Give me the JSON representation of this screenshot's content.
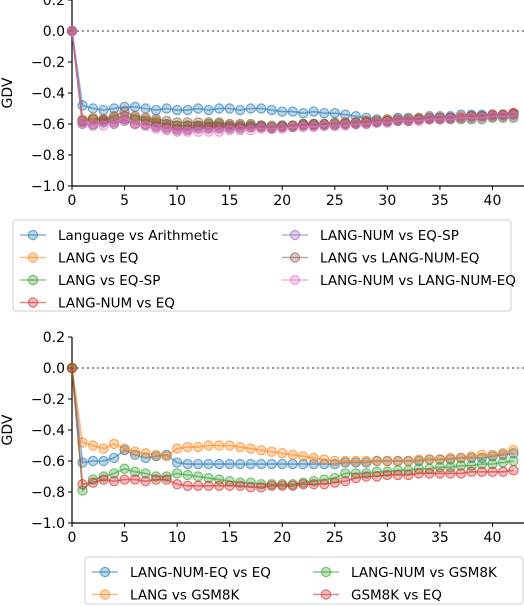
{
  "chart_data": [
    {
      "type": "line",
      "ylabel": "GDV",
      "xlabel": "",
      "xlim": [
        0,
        43
      ],
      "ylim": [
        -1.0,
        0.2
      ],
      "xticks": [
        0,
        5,
        10,
        15,
        20,
        25,
        30,
        35,
        40
      ],
      "yticks": [
        0.2,
        0.0,
        -0.2,
        -0.4,
        -0.6,
        -0.8,
        -1.0
      ],
      "xtick_labels": [
        "0",
        "5",
        "10",
        "15",
        "20",
        "25",
        "30",
        "35",
        "40"
      ],
      "ytick_labels": [
        "0.2",
        "0.0",
        "−0.2",
        "−0.4",
        "−0.6",
        "−0.8",
        "−1.0"
      ],
      "reference_line": 0.0,
      "legend_position": "below",
      "series": [
        {
          "name": "Language vs Arithmetic",
          "color": "#1f77b4",
          "y": [
            0.0,
            -0.48,
            -0.5,
            -0.51,
            -0.5,
            -0.49,
            -0.49,
            -0.5,
            -0.51,
            -0.5,
            -0.51,
            -0.51,
            -0.5,
            -0.51,
            -0.5,
            -0.5,
            -0.51,
            -0.5,
            -0.5,
            -0.51,
            -0.52,
            -0.52,
            -0.53,
            -0.52,
            -0.53,
            -0.53,
            -0.54,
            -0.55,
            -0.56,
            -0.57,
            -0.57,
            -0.56,
            -0.56,
            -0.56,
            -0.55,
            -0.55,
            -0.55,
            -0.54,
            -0.54,
            -0.54,
            -0.54,
            -0.54,
            -0.53
          ]
        },
        {
          "name": "LANG vs EQ",
          "color": "#ff7f0e",
          "y": [
            0.0,
            -0.57,
            -0.56,
            -0.57,
            -0.56,
            -0.55,
            -0.56,
            -0.57,
            -0.58,
            -0.6,
            -0.61,
            -0.61,
            -0.61,
            -0.61,
            -0.61,
            -0.61,
            -0.61,
            -0.61,
            -0.61,
            -0.62,
            -0.61,
            -0.61,
            -0.6,
            -0.6,
            -0.6,
            -0.6,
            -0.59,
            -0.59,
            -0.58,
            -0.58,
            -0.57,
            -0.57,
            -0.57,
            -0.56,
            -0.56,
            -0.56,
            -0.56,
            -0.55,
            -0.55,
            -0.55,
            -0.55,
            -0.54,
            -0.53
          ]
        },
        {
          "name": "LANG vs EQ-SP",
          "color": "#2ca02c",
          "y": [
            0.0,
            -0.58,
            -0.57,
            -0.58,
            -0.57,
            -0.56,
            -0.57,
            -0.58,
            -0.59,
            -0.6,
            -0.61,
            -0.61,
            -0.61,
            -0.6,
            -0.6,
            -0.61,
            -0.61,
            -0.61,
            -0.61,
            -0.62,
            -0.61,
            -0.61,
            -0.6,
            -0.6,
            -0.6,
            -0.6,
            -0.6,
            -0.59,
            -0.59,
            -0.59,
            -0.58,
            -0.58,
            -0.58,
            -0.57,
            -0.57,
            -0.57,
            -0.57,
            -0.57,
            -0.57,
            -0.57,
            -0.56,
            -0.56,
            -0.56
          ]
        },
        {
          "name": "LANG-NUM vs EQ",
          "color": "#d62728",
          "y": [
            0.0,
            -0.59,
            -0.6,
            -0.58,
            -0.59,
            -0.57,
            -0.6,
            -0.6,
            -0.61,
            -0.62,
            -0.63,
            -0.63,
            -0.62,
            -0.62,
            -0.62,
            -0.62,
            -0.62,
            -0.62,
            -0.62,
            -0.63,
            -0.62,
            -0.62,
            -0.61,
            -0.61,
            -0.61,
            -0.61,
            -0.6,
            -0.6,
            -0.59,
            -0.59,
            -0.58,
            -0.58,
            -0.58,
            -0.57,
            -0.57,
            -0.57,
            -0.56,
            -0.56,
            -0.55,
            -0.55,
            -0.54,
            -0.54,
            -0.53
          ]
        },
        {
          "name": "LANG-NUM vs EQ-SP",
          "color": "#9467bd",
          "y": [
            0.0,
            -0.6,
            -0.61,
            -0.59,
            -0.6,
            -0.58,
            -0.6,
            -0.61,
            -0.62,
            -0.63,
            -0.64,
            -0.64,
            -0.63,
            -0.63,
            -0.63,
            -0.63,
            -0.63,
            -0.62,
            -0.62,
            -0.63,
            -0.62,
            -0.62,
            -0.61,
            -0.61,
            -0.61,
            -0.61,
            -0.6,
            -0.6,
            -0.6,
            -0.59,
            -0.59,
            -0.58,
            -0.58,
            -0.57,
            -0.57,
            -0.57,
            -0.56,
            -0.56,
            -0.56,
            -0.55,
            -0.55,
            -0.55,
            -0.54
          ]
        },
        {
          "name": "LANG vs LANG-NUM-EQ",
          "color": "#8c564b",
          "y": [
            0.0,
            -0.58,
            -0.57,
            -0.57,
            -0.55,
            -0.52,
            -0.55,
            -0.56,
            -0.57,
            -0.58,
            -0.59,
            -0.59,
            -0.59,
            -0.59,
            -0.59,
            -0.6,
            -0.6,
            -0.6,
            -0.61,
            -0.61,
            -0.61,
            -0.61,
            -0.6,
            -0.6,
            -0.6,
            -0.59,
            -0.59,
            -0.59,
            -0.58,
            -0.58,
            -0.58,
            -0.57,
            -0.57,
            -0.57,
            -0.56,
            -0.56,
            -0.56,
            -0.56,
            -0.55,
            -0.55,
            -0.55,
            -0.54,
            -0.54
          ]
        },
        {
          "name": "LANG-NUM vs LANG-NUM-EQ",
          "color": "#e377c2",
          "y": [
            0.0,
            -0.59,
            -0.6,
            -0.61,
            -0.59,
            -0.56,
            -0.6,
            -0.61,
            -0.63,
            -0.64,
            -0.65,
            -0.65,
            -0.65,
            -0.65,
            -0.65,
            -0.64,
            -0.64,
            -0.64,
            -0.63,
            -0.63,
            -0.63,
            -0.62,
            -0.62,
            -0.62,
            -0.61,
            -0.61,
            -0.61,
            -0.6,
            -0.6,
            -0.59,
            -0.59,
            -0.58,
            -0.58,
            -0.58,
            -0.57,
            -0.57,
            -0.57,
            -0.56,
            -0.56,
            -0.56,
            -0.55,
            -0.55,
            -0.55
          ]
        }
      ]
    },
    {
      "type": "line",
      "ylabel": "GDV",
      "xlabel": "",
      "xlim": [
        0,
        43
      ],
      "ylim": [
        -1.0,
        0.2
      ],
      "xticks": [
        0,
        5,
        10,
        15,
        20,
        25,
        30,
        35,
        40
      ],
      "yticks": [
        0.2,
        0.0,
        -0.2,
        -0.4,
        -0.6,
        -0.8,
        -1.0
      ],
      "xtick_labels": [
        "0",
        "5",
        "10",
        "15",
        "20",
        "25",
        "30",
        "35",
        "40"
      ],
      "ytick_labels": [
        "0.2",
        "0.0",
        "−0.2",
        "−0.4",
        "−0.6",
        "−0.8",
        "−1.0"
      ],
      "reference_line": 0.0,
      "legend_position": "below",
      "series": [
        {
          "name": "LANG-NUM-EQ vs EQ",
          "color": "#1f77b4",
          "y": [
            0.0,
            -0.61,
            -0.6,
            -0.6,
            -0.58,
            -0.53,
            -0.56,
            -0.58,
            -0.57,
            -0.56,
            -0.61,
            -0.62,
            -0.62,
            -0.62,
            -0.62,
            -0.62,
            -0.62,
            -0.62,
            -0.62,
            -0.62,
            -0.62,
            -0.62,
            -0.62,
            -0.62,
            -0.62,
            -0.62,
            -0.61,
            -0.61,
            -0.61,
            -0.6,
            -0.6,
            -0.6,
            -0.6,
            -0.6,
            -0.59,
            -0.59,
            -0.59,
            -0.58,
            -0.58,
            -0.58,
            -0.57,
            -0.56,
            -0.55
          ]
        },
        {
          "name": "LANG vs GSM8K",
          "color": "#ff7f0e",
          "y": [
            0.0,
            -0.48,
            -0.5,
            -0.52,
            -0.49,
            -0.52,
            -0.54,
            -0.55,
            -0.56,
            -0.57,
            -0.52,
            -0.51,
            -0.51,
            -0.5,
            -0.5,
            -0.5,
            -0.51,
            -0.52,
            -0.53,
            -0.54,
            -0.55,
            -0.56,
            -0.57,
            -0.58,
            -0.59,
            -0.6,
            -0.6,
            -0.6,
            -0.6,
            -0.6,
            -0.6,
            -0.6,
            -0.6,
            -0.59,
            -0.59,
            -0.59,
            -0.58,
            -0.58,
            -0.57,
            -0.56,
            -0.56,
            -0.55,
            -0.53
          ]
        },
        {
          "name": "LANG-NUM vs GSM8K",
          "color": "#2ca02c",
          "y": [
            0.0,
            -0.79,
            -0.72,
            -0.7,
            -0.68,
            -0.65,
            -0.67,
            -0.68,
            -0.7,
            -0.7,
            -0.68,
            -0.69,
            -0.7,
            -0.71,
            -0.72,
            -0.73,
            -0.74,
            -0.74,
            -0.75,
            -0.75,
            -0.75,
            -0.75,
            -0.74,
            -0.73,
            -0.72,
            -0.71,
            -0.68,
            -0.68,
            -0.68,
            -0.67,
            -0.67,
            -0.66,
            -0.66,
            -0.65,
            -0.65,
            -0.64,
            -0.64,
            -0.63,
            -0.63,
            -0.62,
            -0.62,
            -0.61,
            -0.6
          ]
        },
        {
          "name": "GSM8K vs EQ",
          "color": "#d62728",
          "y": [
            0.0,
            -0.75,
            -0.74,
            -0.72,
            -0.73,
            -0.72,
            -0.72,
            -0.73,
            -0.72,
            -0.72,
            -0.75,
            -0.76,
            -0.76,
            -0.76,
            -0.76,
            -0.76,
            -0.76,
            -0.77,
            -0.77,
            -0.76,
            -0.76,
            -0.76,
            -0.75,
            -0.75,
            -0.75,
            -0.74,
            -0.73,
            -0.71,
            -0.7,
            -0.7,
            -0.69,
            -0.69,
            -0.69,
            -0.68,
            -0.68,
            -0.68,
            -0.68,
            -0.68,
            -0.67,
            -0.67,
            -0.67,
            -0.67,
            -0.66
          ]
        }
      ]
    }
  ]
}
